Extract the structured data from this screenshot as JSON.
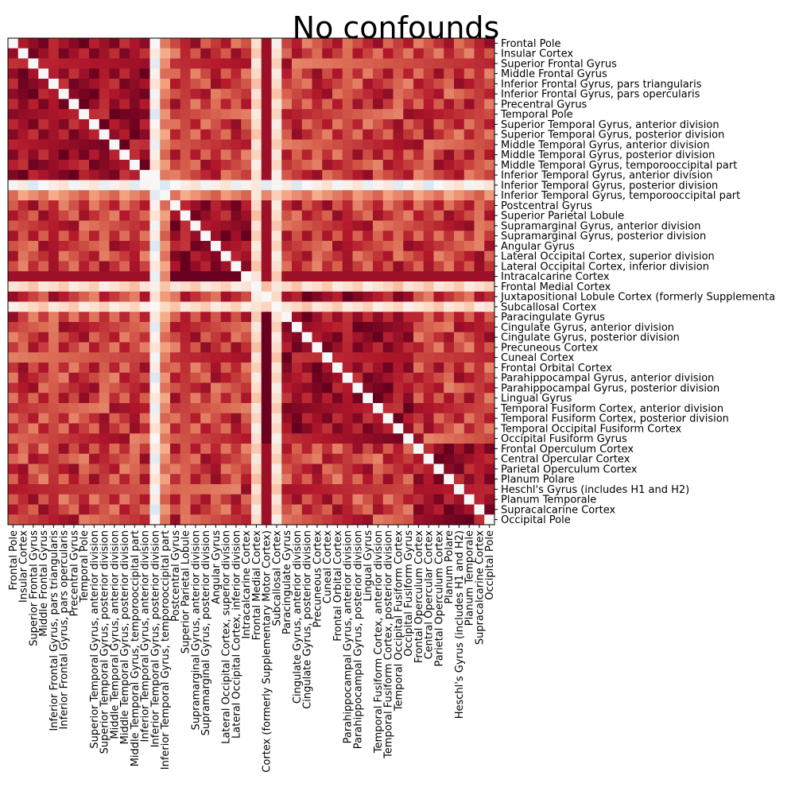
{
  "chart_data": {
    "type": "heatmap",
    "title": "No confounds",
    "colormap": "RdBu_r",
    "colormap_stops": [
      "#67001f",
      "#b2182b",
      "#d6604d",
      "#f4a582",
      "#fddbc7",
      "#f7f7f7",
      "#d1e5f0",
      "#92c5de"
    ],
    "grid": false,
    "legend": "none",
    "labels": [
      "Frontal Pole",
      "Insular Cortex",
      "Superior Frontal Gyrus",
      "Middle Frontal Gyrus",
      "Inferior Frontal Gyrus, pars triangularis",
      "Inferior Frontal Gyrus, pars opercularis",
      "Precentral Gyrus",
      "Temporal Pole",
      "Superior Temporal Gyrus, anterior division",
      "Superior Temporal Gyrus, posterior division",
      "Middle Temporal Gyrus, anterior division",
      "Middle Temporal Gyrus, posterior division",
      "Middle Temporal Gyrus, temporooccipital part",
      "Inferior Temporal Gyrus, anterior division",
      "Inferior Temporal Gyrus, posterior division",
      "Inferior Temporal Gyrus, temporooccipital part",
      "Postcentral Gyrus",
      "Superior Parietal Lobule",
      "Supramarginal Gyrus, anterior division",
      "Supramarginal Gyrus, posterior division",
      "Angular Gyrus",
      "Lateral Occipital Cortex, superior division",
      "Lateral Occipital Cortex, inferior division",
      "Intracalcarine Cortex",
      "Frontal Medial Cortex",
      "Juxtapositional Lobule Cortex (formerly Supplementary Motor Cortex)",
      "Subcallosal Cortex",
      "Paracingulate Gyrus",
      "Cingulate Gyrus, anterior division",
      "Cingulate Gyrus, posterior division",
      "Precuneous Cortex",
      "Cuneal Cortex",
      "Frontal Orbital Cortex",
      "Parahippocampal Gyrus, anterior division",
      "Parahippocampal Gyrus, posterior division",
      "Lingual Gyrus",
      "Temporal Fusiform Cortex, anterior division",
      "Temporal Fusiform Cortex, posterior division",
      "Temporal Occipital Fusiform Cortex",
      "Occipital Fusiform Gyrus",
      "Frontal Operculum Cortex",
      "Central Opercular Cortex",
      "Parietal Operculum Cortex",
      "Planum Polare",
      "Heschl's Gyrus (includes H1 and H2)",
      "Planum Temporale",
      "Supracalcarine Cortex",
      "Occipital Pole"
    ],
    "y_tick_labels": [
      "Frontal Pole",
      "Insular Cortex",
      "Superior Frontal Gyrus",
      "Middle Frontal Gyrus",
      "Inferior Frontal Gyrus, pars triangularis",
      "Inferior Frontal Gyrus, pars opercularis",
      "Precentral Gyrus",
      "Temporal Pole",
      "Superior Temporal Gyrus, anterior division",
      "Superior Temporal Gyrus, posterior division",
      "Middle Temporal Gyrus, anterior division",
      "Middle Temporal Gyrus, posterior division",
      "Middle Temporal Gyrus, temporooccipital part",
      "Inferior Temporal Gyrus, anterior division",
      "Inferior Temporal Gyrus, posterior division",
      "Inferior Temporal Gyrus, temporooccipital part",
      "Postcentral Gyrus",
      "Superior Parietal Lobule",
      "Supramarginal Gyrus, anterior division",
      "Supramarginal Gyrus, posterior division",
      "Angular Gyrus",
      "Lateral Occipital Cortex, superior division",
      "Lateral Occipital Cortex, inferior division",
      "Intracalcarine Cortex",
      "Frontal Medial Cortex",
      "Juxtapositional Lobule Cortex (formerly Supplementa",
      "Subcallosal Cortex",
      "Paracingulate Gyrus",
      "Cingulate Gyrus, anterior division",
      "Cingulate Gyrus, posterior division",
      "Precuneous Cortex",
      "Cuneal Cortex",
      "Frontal Orbital Cortex",
      "Parahippocampal Gyrus, anterior division",
      "Parahippocampal Gyrus, posterior division",
      "Lingual Gyrus",
      "Temporal Fusiform Cortex, anterior division",
      "Temporal Fusiform Cortex, posterior division",
      "Temporal Occipital Fusiform Cortex",
      "Occipital Fusiform Gyrus",
      "Frontal Operculum Cortex",
      "Central Opercular Cortex",
      "Parietal Operculum Cortex",
      "Planum Polare",
      "Heschl's Gyrus (includes H1 and H2)",
      "Planum Temporale",
      "Supracalcarine Cortex",
      "Occipital Pole"
    ],
    "x_tick_labels": [
      "Frontal Pole",
      "Insular Cortex",
      "Superior Frontal Gyrus",
      "Middle Frontal Gyrus",
      "Inferior Frontal Gyrus, pars triangularis",
      "Inferior Frontal Gyrus, pars opercularis",
      "Precentral Gyrus",
      "Temporal Pole",
      "Superior Temporal Gyrus, anterior division",
      "Superior Temporal Gyrus, posterior division",
      "Middle Temporal Gyrus, anterior division",
      "Middle Temporal Gyrus, posterior division",
      "Middle Temporal Gyrus, temporooccipital part",
      "Inferior Temporal Gyrus, anterior division",
      "Inferior Temporal Gyrus, posterior division",
      "Inferior Temporal Gyrus, temporooccipital part",
      "Postcentral Gyrus",
      "Superior Parietal Lobule",
      "Supramarginal Gyrus, anterior division",
      "Supramarginal Gyrus, posterior division",
      "Angular Gyrus",
      "Lateral Occipital Cortex, superior division",
      "Lateral Occipital Cortex, inferior division",
      "Intracalcarine Cortex",
      "Frontal Medial Cortex",
      "Cortex (formerly Supplementary Motor Cortex)",
      "Subcallosal Cortex",
      "Paracingulate Gyrus",
      "Cingulate Gyrus, anterior division",
      "Cingulate Gyrus, posterior division",
      "Precuneous Cortex",
      "Cuneal Cortex",
      "Frontal Orbital Cortex",
      "Parahippocampal Gyrus, anterior division",
      "Parahippocampal Gyrus, posterior division",
      "Lingual Gyrus",
      "Temporal Fusiform Cortex, anterior division",
      "Temporal Fusiform Cortex, posterior division",
      "Temporal Occipital Fusiform Cortex",
      "Occipital Fusiform Gyrus",
      "Frontal Operculum Cortex",
      "Central Opercular Cortex",
      "Parietal Operculum Cortex",
      "Planum Polare",
      "Heschl's Gyrus (includes H1 and H2)",
      "Planum Temporale",
      "Supracalcarine Cortex",
      "Occipital Pole"
    ],
    "diagonal_value": 0,
    "special_rows": {
      "Inferior Temporal Gyrus, posterior division": 0.05,
      "Frontal Medial Cortex": 0.2,
      "Subcallosal Cortex": 0.18,
      "Inferior Temporal Gyrus, temporooccipital part": 0.5
    },
    "value_range": [
      -0.2,
      1.0
    ],
    "note_values": "cell values estimated from colour; range 0 (white) to 1 (dark red), light blue slightly negative"
  }
}
